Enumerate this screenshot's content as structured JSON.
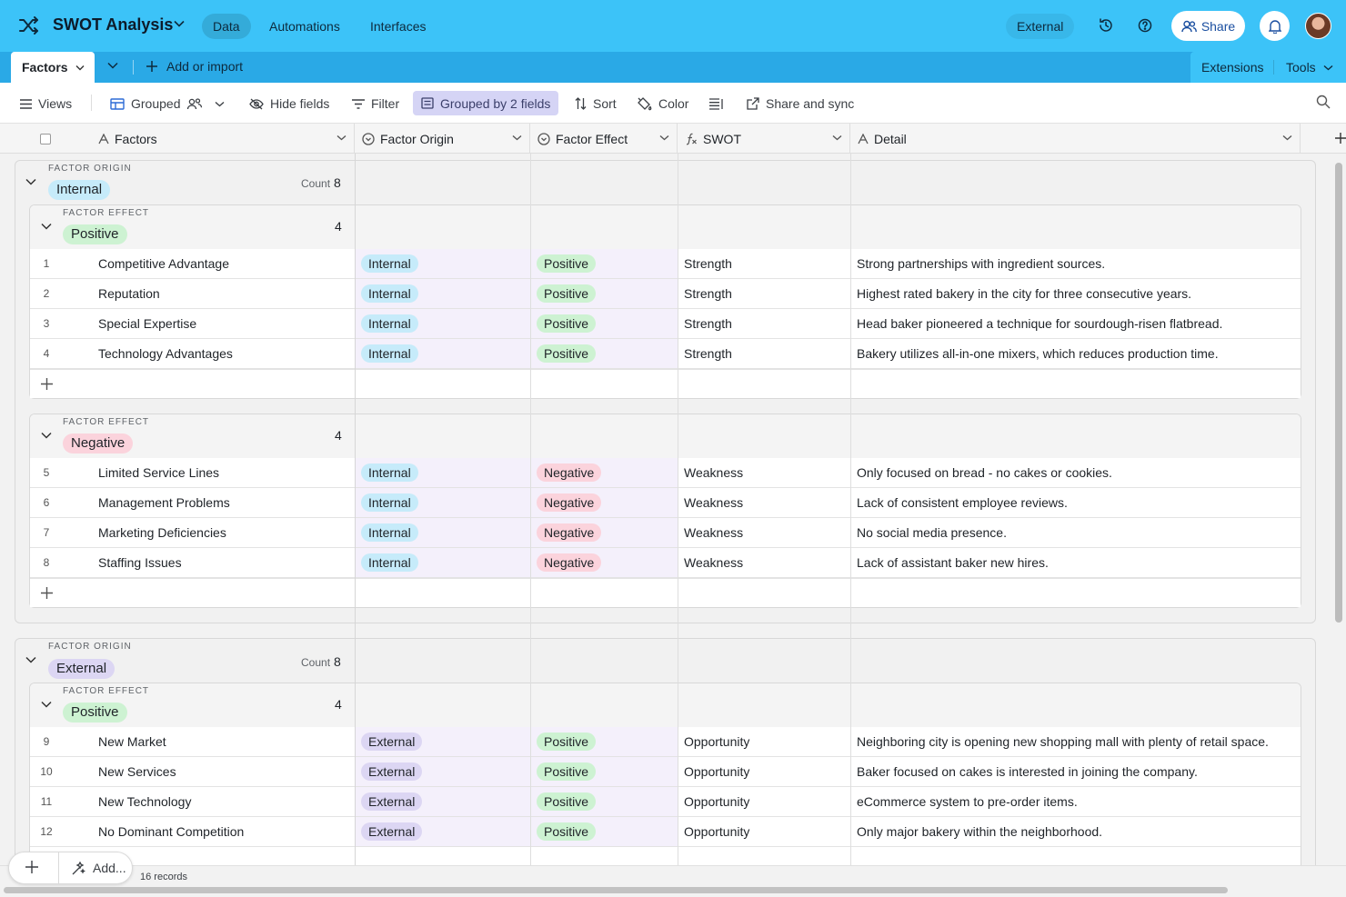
{
  "app": {
    "title": "SWOT Analysis",
    "nav_tabs": [
      "Data",
      "Automations",
      "Interfaces"
    ],
    "external_label": "External",
    "share_label": "Share"
  },
  "tables": {
    "active": "Factors",
    "add_label": "Add or import",
    "extensions_label": "Extensions",
    "tools_label": "Tools"
  },
  "toolbar": {
    "views": "Views",
    "view_name": "Grouped",
    "hide_fields": "Hide fields",
    "filter": "Filter",
    "grouped_by": "Grouped by 2 fields",
    "sort": "Sort",
    "color": "Color",
    "share_sync": "Share and sync"
  },
  "columns": [
    "Factors",
    "Factor Origin",
    "Factor Effect",
    "SWOT",
    "Detail"
  ],
  "group_labels": {
    "origin": "Factor Origin",
    "effect": "Factor Effect",
    "count_word": "Count"
  },
  "groups": {
    "internal": {
      "name": "Internal",
      "count": "8",
      "positive": {
        "name": "Positive",
        "count": "4"
      },
      "negative": {
        "name": "Negative",
        "count": "4"
      }
    },
    "external": {
      "name": "External",
      "count": "8",
      "positive": {
        "name": "Positive",
        "count": "4"
      }
    }
  },
  "rows": [
    {
      "n": "1",
      "factor": "Competitive Advantage",
      "origin": "Internal",
      "effect": "Positive",
      "swot": "Strength",
      "detail": "Strong partnerships with ingredient sources."
    },
    {
      "n": "2",
      "factor": "Reputation",
      "origin": "Internal",
      "effect": "Positive",
      "swot": "Strength",
      "detail": "Highest rated bakery in the city for three consecutive years."
    },
    {
      "n": "3",
      "factor": "Special Expertise",
      "origin": "Internal",
      "effect": "Positive",
      "swot": "Strength",
      "detail": "Head baker pioneered a technique for sourdough-risen flatbread."
    },
    {
      "n": "4",
      "factor": "Technology Advantages",
      "origin": "Internal",
      "effect": "Positive",
      "swot": "Strength",
      "detail": "Bakery utilizes all-in-one mixers, which reduces production time."
    },
    {
      "n": "5",
      "factor": "Limited Service Lines",
      "origin": "Internal",
      "effect": "Negative",
      "swot": "Weakness",
      "detail": "Only focused on bread - no cakes or cookies."
    },
    {
      "n": "6",
      "factor": "Management Problems",
      "origin": "Internal",
      "effect": "Negative",
      "swot": "Weakness",
      "detail": "Lack of consistent employee reviews."
    },
    {
      "n": "7",
      "factor": "Marketing Deficiencies",
      "origin": "Internal",
      "effect": "Negative",
      "swot": "Weakness",
      "detail": "No social media presence."
    },
    {
      "n": "8",
      "factor": "Staffing Issues",
      "origin": "Internal",
      "effect": "Negative",
      "swot": "Weakness",
      "detail": "Lack of assistant baker new hires."
    },
    {
      "n": "9",
      "factor": "New Market",
      "origin": "External",
      "effect": "Positive",
      "swot": "Opportunity",
      "detail": "Neighboring city is opening new shopping mall with plenty of retail space."
    },
    {
      "n": "10",
      "factor": "New Services",
      "origin": "External",
      "effect": "Positive",
      "swot": "Opportunity",
      "detail": "Baker focused on cakes is interested in joining the company."
    },
    {
      "n": "11",
      "factor": "New Technology",
      "origin": "External",
      "effect": "Positive",
      "swot": "Opportunity",
      "detail": "eCommerce system to pre-order items."
    },
    {
      "n": "12",
      "factor": "No Dominant Competition",
      "origin": "External",
      "effect": "Positive",
      "swot": "Opportunity",
      "detail": "Only major bakery within the neighborhood."
    }
  ],
  "footer": {
    "add_label": "Add...",
    "records": "16 records"
  },
  "colors": {
    "topbar": "#3cc3f8",
    "internal": "#c6ebfa",
    "external": "#dcd6f3",
    "positive": "#cdf2d2",
    "negative": "#fbd3dc",
    "grouped_by_bg": "#d5d4f5"
  },
  "icons": [
    "shuffle-logo-icon",
    "chevron-down-icon",
    "history-icon",
    "help-icon",
    "users-icon",
    "bell-icon",
    "plus-icon",
    "menu-icon",
    "grid-icon",
    "people-icon",
    "eye-slash-icon",
    "filter-icon",
    "group-icon",
    "sort-icon",
    "paint-icon",
    "row-height-icon",
    "share-out-icon",
    "search-icon",
    "text-field-icon",
    "single-select-icon",
    "formula-icon",
    "wand-icon"
  ]
}
